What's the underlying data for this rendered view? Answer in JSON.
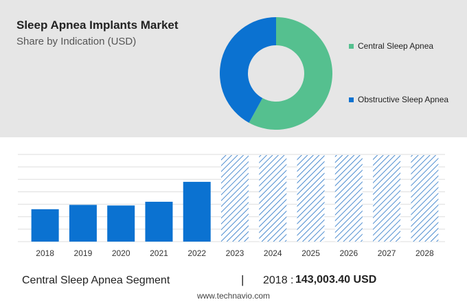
{
  "header": {
    "title": "Sleep Apnea Implants Market",
    "subtitle": "Share by Indication (USD)"
  },
  "footer": {
    "segment_label": "Central Sleep Apnea Segment",
    "separator": "|",
    "year_label": "2018 :",
    "value_label": "143,003.40 USD",
    "source": "www.technavio.com"
  },
  "colors": {
    "central": "#55c08f",
    "obstructive": "#0b72d1",
    "bar": "#0b72d1",
    "forecast_hatch": "#1f6fc4",
    "panel_bg": "#e6e6e6"
  },
  "chart_data": [
    {
      "type": "pie",
      "variant": "donut",
      "categories": [
        "Central Sleep Apnea",
        "Obstructive Sleep Apnea"
      ],
      "values": [
        58,
        42
      ],
      "legend": "right"
    },
    {
      "type": "bar",
      "categories": [
        "2018",
        "2019",
        "2020",
        "2021",
        "2022",
        "2023",
        "2024",
        "2025",
        "2026",
        "2027",
        "2028"
      ],
      "values": [
        52,
        59,
        58,
        64,
        96,
        null,
        null,
        null,
        null,
        null,
        null
      ],
      "forecast_categories": [
        "2023",
        "2024",
        "2025",
        "2026",
        "2027",
        "2028"
      ],
      "forecast_style": "hatched",
      "ylim": [
        0,
        140
      ],
      "grid": true,
      "yaxis_labels_shown": false
    }
  ]
}
